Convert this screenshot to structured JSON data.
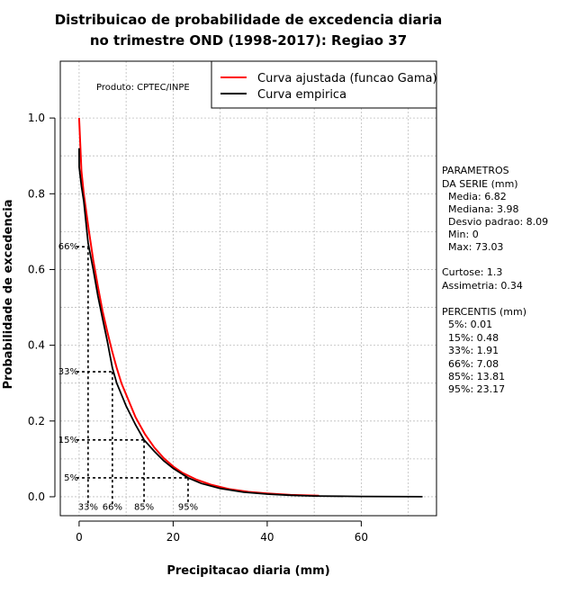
{
  "chart_data": {
    "type": "line",
    "title": "Distribuicao de probabilidade de excedencia diaria",
    "subtitle": "no trimestre OND (1998-2017): Regiao 37",
    "xlabel": "Precipitacao diaria (mm)",
    "ylabel": "Probabilidade de excedencia",
    "xlim": [
      -4,
      76
    ],
    "ylim": [
      -0.05,
      1.15
    ],
    "xticks": [
      0,
      20,
      40,
      60
    ],
    "yticks": [
      0.0,
      0.2,
      0.4,
      0.6,
      0.8,
      1.0
    ],
    "grid": true,
    "legend_position": "top-right",
    "series": [
      {
        "name": "Curva ajustada (funcao Gama)",
        "color": "#ff0000",
        "x": [
          0,
          0.5,
          1,
          2,
          3,
          4,
          5,
          6,
          7,
          8,
          9,
          10,
          12,
          14,
          16,
          18,
          20,
          22,
          25,
          28,
          32,
          36,
          40,
          45,
          51
        ],
        "y": [
          1.0,
          0.86,
          0.8,
          0.71,
          0.625,
          0.555,
          0.49,
          0.435,
          0.385,
          0.34,
          0.3,
          0.27,
          0.21,
          0.165,
          0.13,
          0.102,
          0.08,
          0.063,
          0.045,
          0.032,
          0.02,
          0.013,
          0.009,
          0.005,
          0.003
        ]
      },
      {
        "name": "Curva empirica",
        "color": "#000000",
        "x": [
          0,
          0.01,
          0.5,
          1,
          1.91,
          3,
          4,
          5,
          6,
          7.08,
          8,
          9,
          10,
          12,
          13.81,
          16,
          18,
          20,
          23.17,
          26,
          30,
          35,
          40,
          45,
          50,
          60,
          73.03
        ],
        "y": [
          0.92,
          0.87,
          0.82,
          0.78,
          0.67,
          0.6,
          0.53,
          0.47,
          0.41,
          0.34,
          0.3,
          0.27,
          0.24,
          0.19,
          0.15,
          0.12,
          0.095,
          0.075,
          0.05,
          0.035,
          0.022,
          0.012,
          0.007,
          0.004,
          0.002,
          0.0008,
          0.0002
        ]
      }
    ],
    "percentile_markers": [
      {
        "label": "5%",
        "x_label": "95%",
        "y": 0.05,
        "x": 23.17
      },
      {
        "label": "15%",
        "x_label": "85%",
        "y": 0.15,
        "x": 13.81
      },
      {
        "label": "33%",
        "x_label": "66%",
        "y": 0.33,
        "x": 7.08
      },
      {
        "label": "66%",
        "x_label": "33%",
        "y": 0.66,
        "x": 1.91
      }
    ],
    "annotation": "Produto: CPTEC/INPE"
  },
  "side_panel": {
    "params_title_1": "PARAMETROS",
    "params_title_2": "DA SERIE (mm)",
    "media": "Media: 6.82",
    "mediana": "Mediana: 3.98",
    "desvio": "Desvio padrao: 8.09",
    "min": "Min: 0",
    "max": "Max: 73.03",
    "curtose": "Curtose: 1.3",
    "assimetria": "Assimetria: 0.34",
    "percentis_title": "PERCENTIS (mm)",
    "p5": "5%: 0.01",
    "p15": "15%: 0.48",
    "p33": "33%: 1.91",
    "p66": "66%: 7.08",
    "p85": "85%: 13.81",
    "p95": "95%: 23.17"
  }
}
